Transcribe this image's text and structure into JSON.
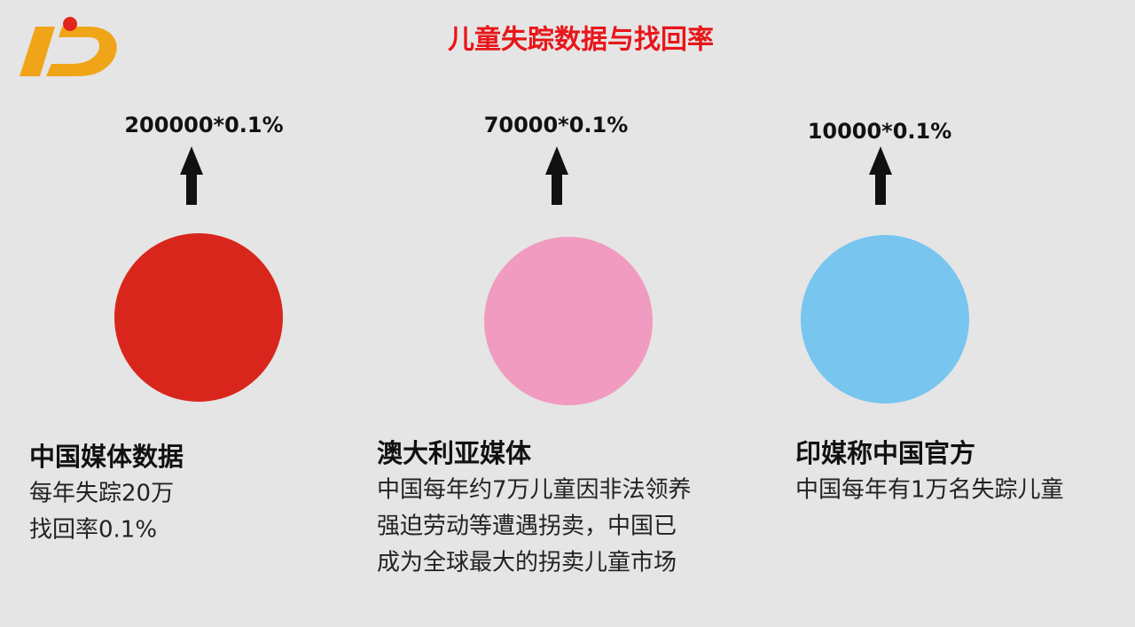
{
  "title": "儿童失踪数据与找回率",
  "columns": [
    {
      "formula": "200000*0.1%",
      "color": "#d9261c",
      "heading": "中国媒体数据",
      "lines": [
        "每年失踪20万",
        "找回率0.1%"
      ]
    },
    {
      "formula": "70000*0.1%",
      "color": "#f09bbf",
      "heading": "澳大利亚媒体",
      "lines": [
        "中国每年约7万儿童因非法领养",
        "强迫劳动等遭遇拐卖，中国已",
        "成为全球最大的拐卖儿童市场"
      ]
    },
    {
      "formula": "10000*0.1%",
      "color": "#78c5f0",
      "heading": "印媒称中国官方",
      "lines": [
        "中国每年有1万名失踪儿童"
      ]
    }
  ]
}
